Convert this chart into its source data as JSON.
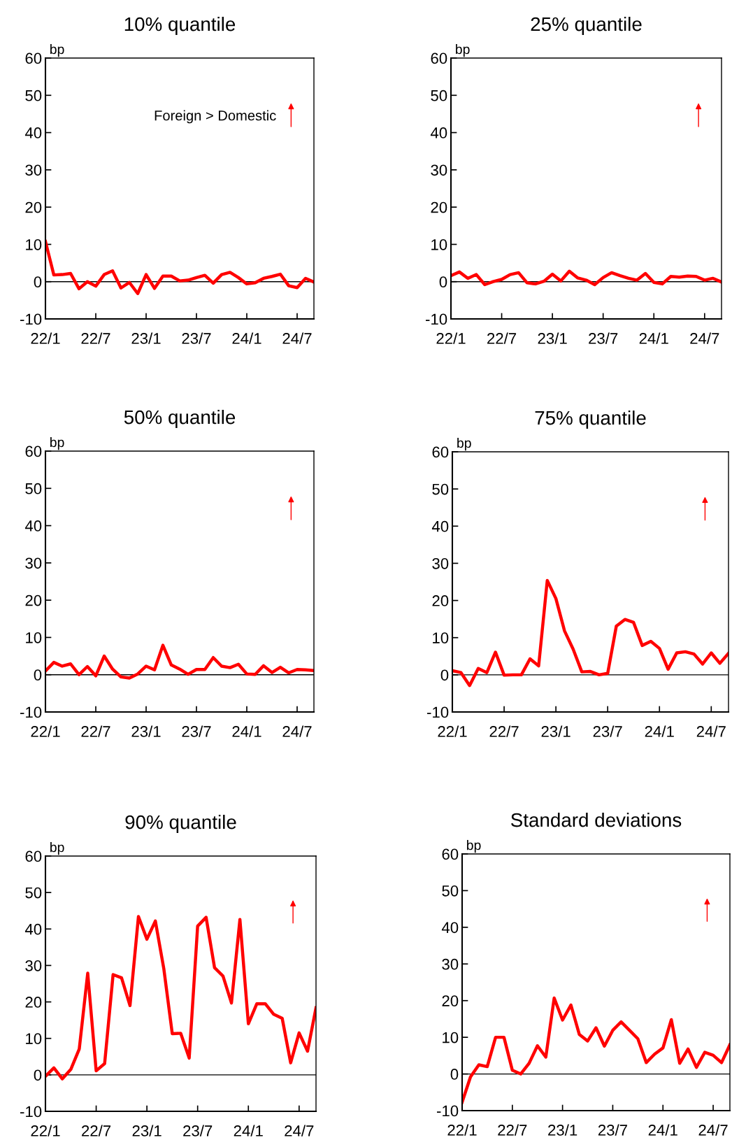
{
  "chart_data": [
    {
      "type": "line",
      "title": "10% quantile",
      "ylabel": "bp",
      "categories": [
        "22/1",
        null,
        null,
        null,
        null,
        null,
        "22/7",
        null,
        null,
        null,
        null,
        null,
        "23/1",
        null,
        null,
        null,
        null,
        null,
        "23/7",
        null,
        null,
        null,
        null,
        null,
        "24/1",
        null,
        null,
        null,
        null,
        null,
        "24/7",
        null,
        null
      ],
      "ylim": [
        -10,
        60
      ],
      "yticks": [
        -10,
        0,
        10,
        20,
        30,
        40,
        50,
        60
      ],
      "ref_lines": [
        {
          "axis": "y",
          "value": 0,
          "color": "#000000"
        }
      ],
      "annotations": [
        "Foreign > Domestic"
      ],
      "series": [
        {
          "color": "#ff0000",
          "values": [
            10.8,
            1.8,
            1.9,
            2.2,
            -1.9,
            0,
            -1.2,
            1.9,
            2.9,
            -1.7,
            -0.2,
            -3.2,
            1.9,
            -1.8,
            1.5,
            1.5,
            0.2,
            0.4,
            1.1,
            1.7,
            -0.4,
            1.9,
            2.5,
            1.1,
            -0.6,
            -0.3,
            0.9,
            1.4,
            2.0,
            -1.1,
            -1.6,
            0.9,
            -0.1
          ]
        }
      ]
    },
    {
      "type": "line",
      "title": "25% quantile",
      "ylabel": "bp",
      "categories": [
        "22/1",
        null,
        null,
        null,
        null,
        null,
        "22/7",
        null,
        null,
        null,
        null,
        null,
        "23/1",
        null,
        null,
        null,
        null,
        null,
        "23/7",
        null,
        null,
        null,
        null,
        null,
        "24/1",
        null,
        null,
        null,
        null,
        null,
        "24/7",
        null,
        null
      ],
      "ylim": [
        -10,
        60
      ],
      "yticks": [
        -10,
        0,
        10,
        20,
        30,
        40,
        50,
        60
      ],
      "ref_lines": [
        {
          "axis": "y",
          "value": 0,
          "color": "#000000"
        }
      ],
      "series": [
        {
          "color": "#ff0000",
          "values": [
            1.6,
            2.6,
            0.9,
            1.9,
            -0.8,
            0,
            0.6,
            1.9,
            2.4,
            -0.3,
            -0.6,
            0.1,
            2.0,
            0.2,
            2.8,
            1.0,
            0.4,
            -0.8,
            1.1,
            2.4,
            1.6,
            0.9,
            0.4,
            2.2,
            -0.2,
            -0.6,
            1.4,
            1.2,
            1.5,
            1.4,
            0.4,
            0.9,
            -0.1
          ]
        }
      ]
    },
    {
      "type": "line",
      "title": "50% quantile",
      "ylabel": "bp",
      "categories": [
        "22/1",
        null,
        null,
        null,
        null,
        null,
        "22/7",
        null,
        null,
        null,
        null,
        null,
        "23/1",
        null,
        null,
        null,
        null,
        null,
        "23/7",
        null,
        null,
        null,
        null,
        null,
        "24/1",
        null,
        null,
        null,
        null,
        null,
        "24/7",
        null,
        null
      ],
      "ylim": [
        -10,
        60
      ],
      "yticks": [
        -10,
        0,
        10,
        20,
        30,
        40,
        50,
        60
      ],
      "ref_lines": [
        {
          "axis": "y",
          "value": 0,
          "color": "#000000"
        }
      ],
      "series": [
        {
          "color": "#ff0000",
          "values": [
            1.0,
            3.3,
            2.3,
            2.9,
            0,
            2.2,
            -0.3,
            5.0,
            1.5,
            -0.6,
            -0.9,
            0.2,
            2.3,
            1.3,
            7.9,
            2.6,
            1.5,
            0.1,
            1.4,
            1.4,
            4.6,
            2.3,
            1.9,
            2.8,
            0.2,
            0.1,
            2.4,
            0.6,
            2.0,
            0.5,
            1.4,
            1.3,
            1.1
          ]
        }
      ]
    },
    {
      "type": "line",
      "title": "75% quantile",
      "ylabel": "bp",
      "categories": [
        "22/1",
        null,
        null,
        null,
        null,
        null,
        "22/7",
        null,
        null,
        null,
        null,
        null,
        "23/1",
        null,
        null,
        null,
        null,
        null,
        "23/7",
        null,
        null,
        null,
        null,
        null,
        "24/1",
        null,
        null,
        null,
        null,
        null,
        "24/7",
        null,
        null
      ],
      "ylim": [
        -10,
        60
      ],
      "yticks": [
        -10,
        0,
        10,
        20,
        30,
        40,
        50,
        60
      ],
      "ref_lines": [
        {
          "axis": "y",
          "value": 0,
          "color": "#000000"
        }
      ],
      "series": [
        {
          "color": "#ff0000",
          "values": [
            1.1,
            0.6,
            -2.9,
            1.7,
            0.6,
            6.1,
            -0.1,
            0,
            0,
            4.3,
            2.4,
            25.4,
            20.5,
            11.8,
            6.9,
            0.8,
            0.9,
            0,
            0.4,
            13.1,
            14.9,
            14.1,
            7.9,
            9.0,
            7.1,
            1.5,
            5.9,
            6.2,
            5.6,
            2.9,
            5.9,
            3.1,
            5.8
          ]
        }
      ]
    },
    {
      "type": "line",
      "title": "90% quantile",
      "ylabel": "bp",
      "categories": [
        "22/1",
        null,
        null,
        null,
        null,
        null,
        "22/7",
        null,
        null,
        null,
        null,
        null,
        "23/1",
        null,
        null,
        null,
        null,
        null,
        "23/7",
        null,
        null,
        null,
        null,
        null,
        "24/1",
        null,
        null,
        null,
        null,
        null,
        "24/7",
        null,
        null
      ],
      "ylim": [
        -10,
        60
      ],
      "yticks": [
        -10,
        0,
        10,
        20,
        30,
        40,
        50,
        60
      ],
      "ref_lines": [
        {
          "axis": "y",
          "value": 0,
          "color": "#000000"
        }
      ],
      "series": [
        {
          "color": "#ff0000",
          "values": [
            -0.4,
            1.9,
            -1.1,
            1.5,
            7.1,
            27.9,
            1.1,
            3.1,
            27.5,
            26.6,
            19.0,
            43.4,
            37.2,
            42.2,
            29.1,
            11.3,
            11.4,
            4.6,
            40.8,
            43.2,
            29.4,
            27.1,
            19.7,
            42.6,
            14.0,
            19.5,
            19.5,
            16.6,
            15.5,
            3.3,
            11.5,
            6.5,
            18.4
          ]
        }
      ]
    },
    {
      "type": "line",
      "title": "Standard deviations",
      "ylabel": "bp",
      "categories": [
        "22/1",
        null,
        null,
        null,
        null,
        null,
        "22/7",
        null,
        null,
        null,
        null,
        null,
        "23/1",
        null,
        null,
        null,
        null,
        null,
        "23/7",
        null,
        null,
        null,
        null,
        null,
        "24/1",
        null,
        null,
        null,
        null,
        null,
        "24/7",
        null,
        null
      ],
      "ylim": [
        -10,
        60
      ],
      "yticks": [
        -10,
        0,
        10,
        20,
        30,
        40,
        50,
        60
      ],
      "ref_lines": [
        {
          "axis": "y",
          "value": 0,
          "color": "#000000"
        }
      ],
      "series": [
        {
          "color": "#ff0000",
          "values": [
            -7.7,
            -0.8,
            2.5,
            2.0,
            10.0,
            10.0,
            1.0,
            0,
            2.9,
            7.7,
            4.6,
            20.7,
            14.7,
            18.8,
            10.8,
            9.0,
            12.6,
            7.6,
            11.9,
            14.2,
            11.9,
            9.6,
            3.1,
            5.4,
            7.1,
            14.8,
            2.9,
            6.8,
            1.8,
            5.9,
            5.1,
            3.1,
            8.0
          ]
        }
      ]
    }
  ]
}
